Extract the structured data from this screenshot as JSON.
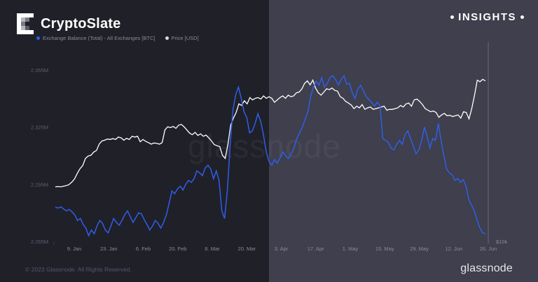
{
  "brand": {
    "name": "CryptoSlate",
    "logo_icon": "cryptoslate-logo-icon",
    "tag": "INSIGHTS"
  },
  "footer": {
    "copyright": "© 2023 Glassnode. All Rights Reserved.",
    "logo_text": "glassnode",
    "watermark": "glassnode"
  },
  "colors": {
    "balance": "#2f5ee8",
    "price": "#ffffff",
    "left_bg": "#202029",
    "right_bg": "#3f3f4d"
  },
  "chart_data": {
    "type": "line",
    "legend": [
      {
        "name": "Exchange Balance (Total) - All Exchanges [BTC]",
        "color": "#2f5ee8"
      },
      {
        "name": "Price [USD]",
        "color": "#ffffff"
      }
    ],
    "x_ticks": [
      "9. Jan",
      "23. Jan",
      "6. Feb",
      "20. Feb",
      "6. Mar",
      "20. Mar",
      "3. Apr",
      "17. Apr",
      "1. May",
      "15. May",
      "29. May",
      "12. Jun",
      "26. Jun"
    ],
    "y_left": {
      "ticks": [
        "2.265M",
        "2.295M",
        "2.325M",
        "2.355M"
      ],
      "range": [
        2265000,
        2355000
      ]
    },
    "y_right": {
      "ticks": [
        "$10k"
      ]
    },
    "grid": false,
    "series": [
      {
        "name": "Exchange Balance (Total) - All Exchanges [BTC]",
        "axis": "left",
        "color": "#2f5ee8",
        "values": [
          2283000,
          2282500,
          2283200,
          2282000,
          2281000,
          2281800,
          2280500,
          2279000,
          2276000,
          2277000,
          2274000,
          2272000,
          2268000,
          2271000,
          2269000,
          2273000,
          2276000,
          2274500,
          2271000,
          2269500,
          2273000,
          2277000,
          2275000,
          2273500,
          2276000,
          2279000,
          2281000,
          2278000,
          2275000,
          2277500,
          2280000,
          2279500,
          2276500,
          2274000,
          2271000,
          2273000,
          2276000,
          2274500,
          2272000,
          2275000,
          2279000,
          2285000,
          2291500,
          2290000,
          2292500,
          2294000,
          2292000,
          2295000,
          2297000,
          2296000,
          2298000,
          2302000,
          2301000,
          2299500,
          2303500,
          2305000,
          2303000,
          2298000,
          2302000,
          2297000,
          2281000,
          2277000,
          2292000,
          2316000,
          2334000,
          2342000,
          2346000,
          2340000,
          2333000,
          2330000,
          2322000,
          2323000,
          2327000,
          2332000,
          2328000,
          2321000,
          2312000,
          2307000,
          2305000,
          2308000,
          2306000,
          2309000,
          2312000,
          2310000,
          2308500,
          2311000,
          2314000,
          2319000,
          2322000,
          2325000,
          2329000,
          2333000,
          2341000,
          2346000,
          2349000,
          2347000,
          2351000,
          2346000,
          2348000,
          2351000,
          2352000,
          2350000,
          2347000,
          2350000,
          2352000,
          2347500,
          2348000,
          2343000,
          2340000,
          2345000,
          2347000,
          2344000,
          2341000,
          2339500,
          2338000,
          2336000,
          2338000,
          2336500,
          2319000,
          2318000,
          2317000,
          2314000,
          2313000,
          2316000,
          2318000,
          2316000,
          2321000,
          2323000,
          2319000,
          2315000,
          2311000,
          2313000,
          2318000,
          2325000,
          2320000,
          2314000,
          2319000,
          2318000,
          2327000,
          2318000,
          2310000,
          2303000,
          2301000,
          2300000,
          2297000,
          2298000,
          2296000,
          2297500,
          2294000,
          2287000,
          2284000,
          2281000,
          2276000,
          2272000,
          2269500,
          2269000
        ]
      },
      {
        "name": "Price [USD]",
        "axis": "right",
        "color": "#ffffff",
        "values": [
          16900,
          16950,
          16900,
          16980,
          17050,
          17200,
          17500,
          17900,
          18600,
          19200,
          19600,
          20500,
          20800,
          20900,
          21300,
          21500,
          22300,
          22700,
          22800,
          22950,
          22900,
          23000,
          22900,
          23200,
          23100,
          22800,
          23050,
          22900,
          23300,
          23200,
          23300,
          22600,
          22900,
          22650,
          22500,
          22300,
          22450,
          22400,
          22300,
          22500,
          24100,
          24500,
          24400,
          24550,
          24300,
          24700,
          24800,
          24500,
          24100,
          23700,
          23500,
          23800,
          23400,
          23600,
          23300,
          23450,
          23100,
          22700,
          22250,
          22100,
          22000,
          20900,
          20500,
          22300,
          24700,
          25600,
          26300,
          27400,
          27200,
          27800,
          27400,
          28200,
          27900,
          28100,
          28200,
          28000,
          28400,
          28100,
          28300,
          28100,
          27600,
          27900,
          28200,
          28400,
          28100,
          28500,
          28300,
          28400,
          28800,
          28900,
          29300,
          30000,
          30300,
          29800,
          30400,
          29400,
          28800,
          28500,
          28900,
          29300,
          29200,
          29400,
          29100,
          29000,
          28300,
          28100,
          27700,
          27500,
          27250,
          26800,
          27100,
          26900,
          27300,
          26700,
          26900,
          27000,
          26700,
          26800,
          26900,
          27000,
          27100,
          26600,
          26700,
          26700,
          26800,
          26900,
          27200,
          27000,
          27400,
          27500,
          27100,
          27900,
          28000,
          27700,
          27300,
          26800,
          26600,
          26400,
          26500,
          26300,
          25700,
          26000,
          26200,
          25900,
          25950,
          25800,
          25900,
          26000,
          25600,
          26400,
          26300,
          25500,
          26800,
          28500,
          30400,
          30200,
          30500,
          30300
        ]
      }
    ]
  }
}
